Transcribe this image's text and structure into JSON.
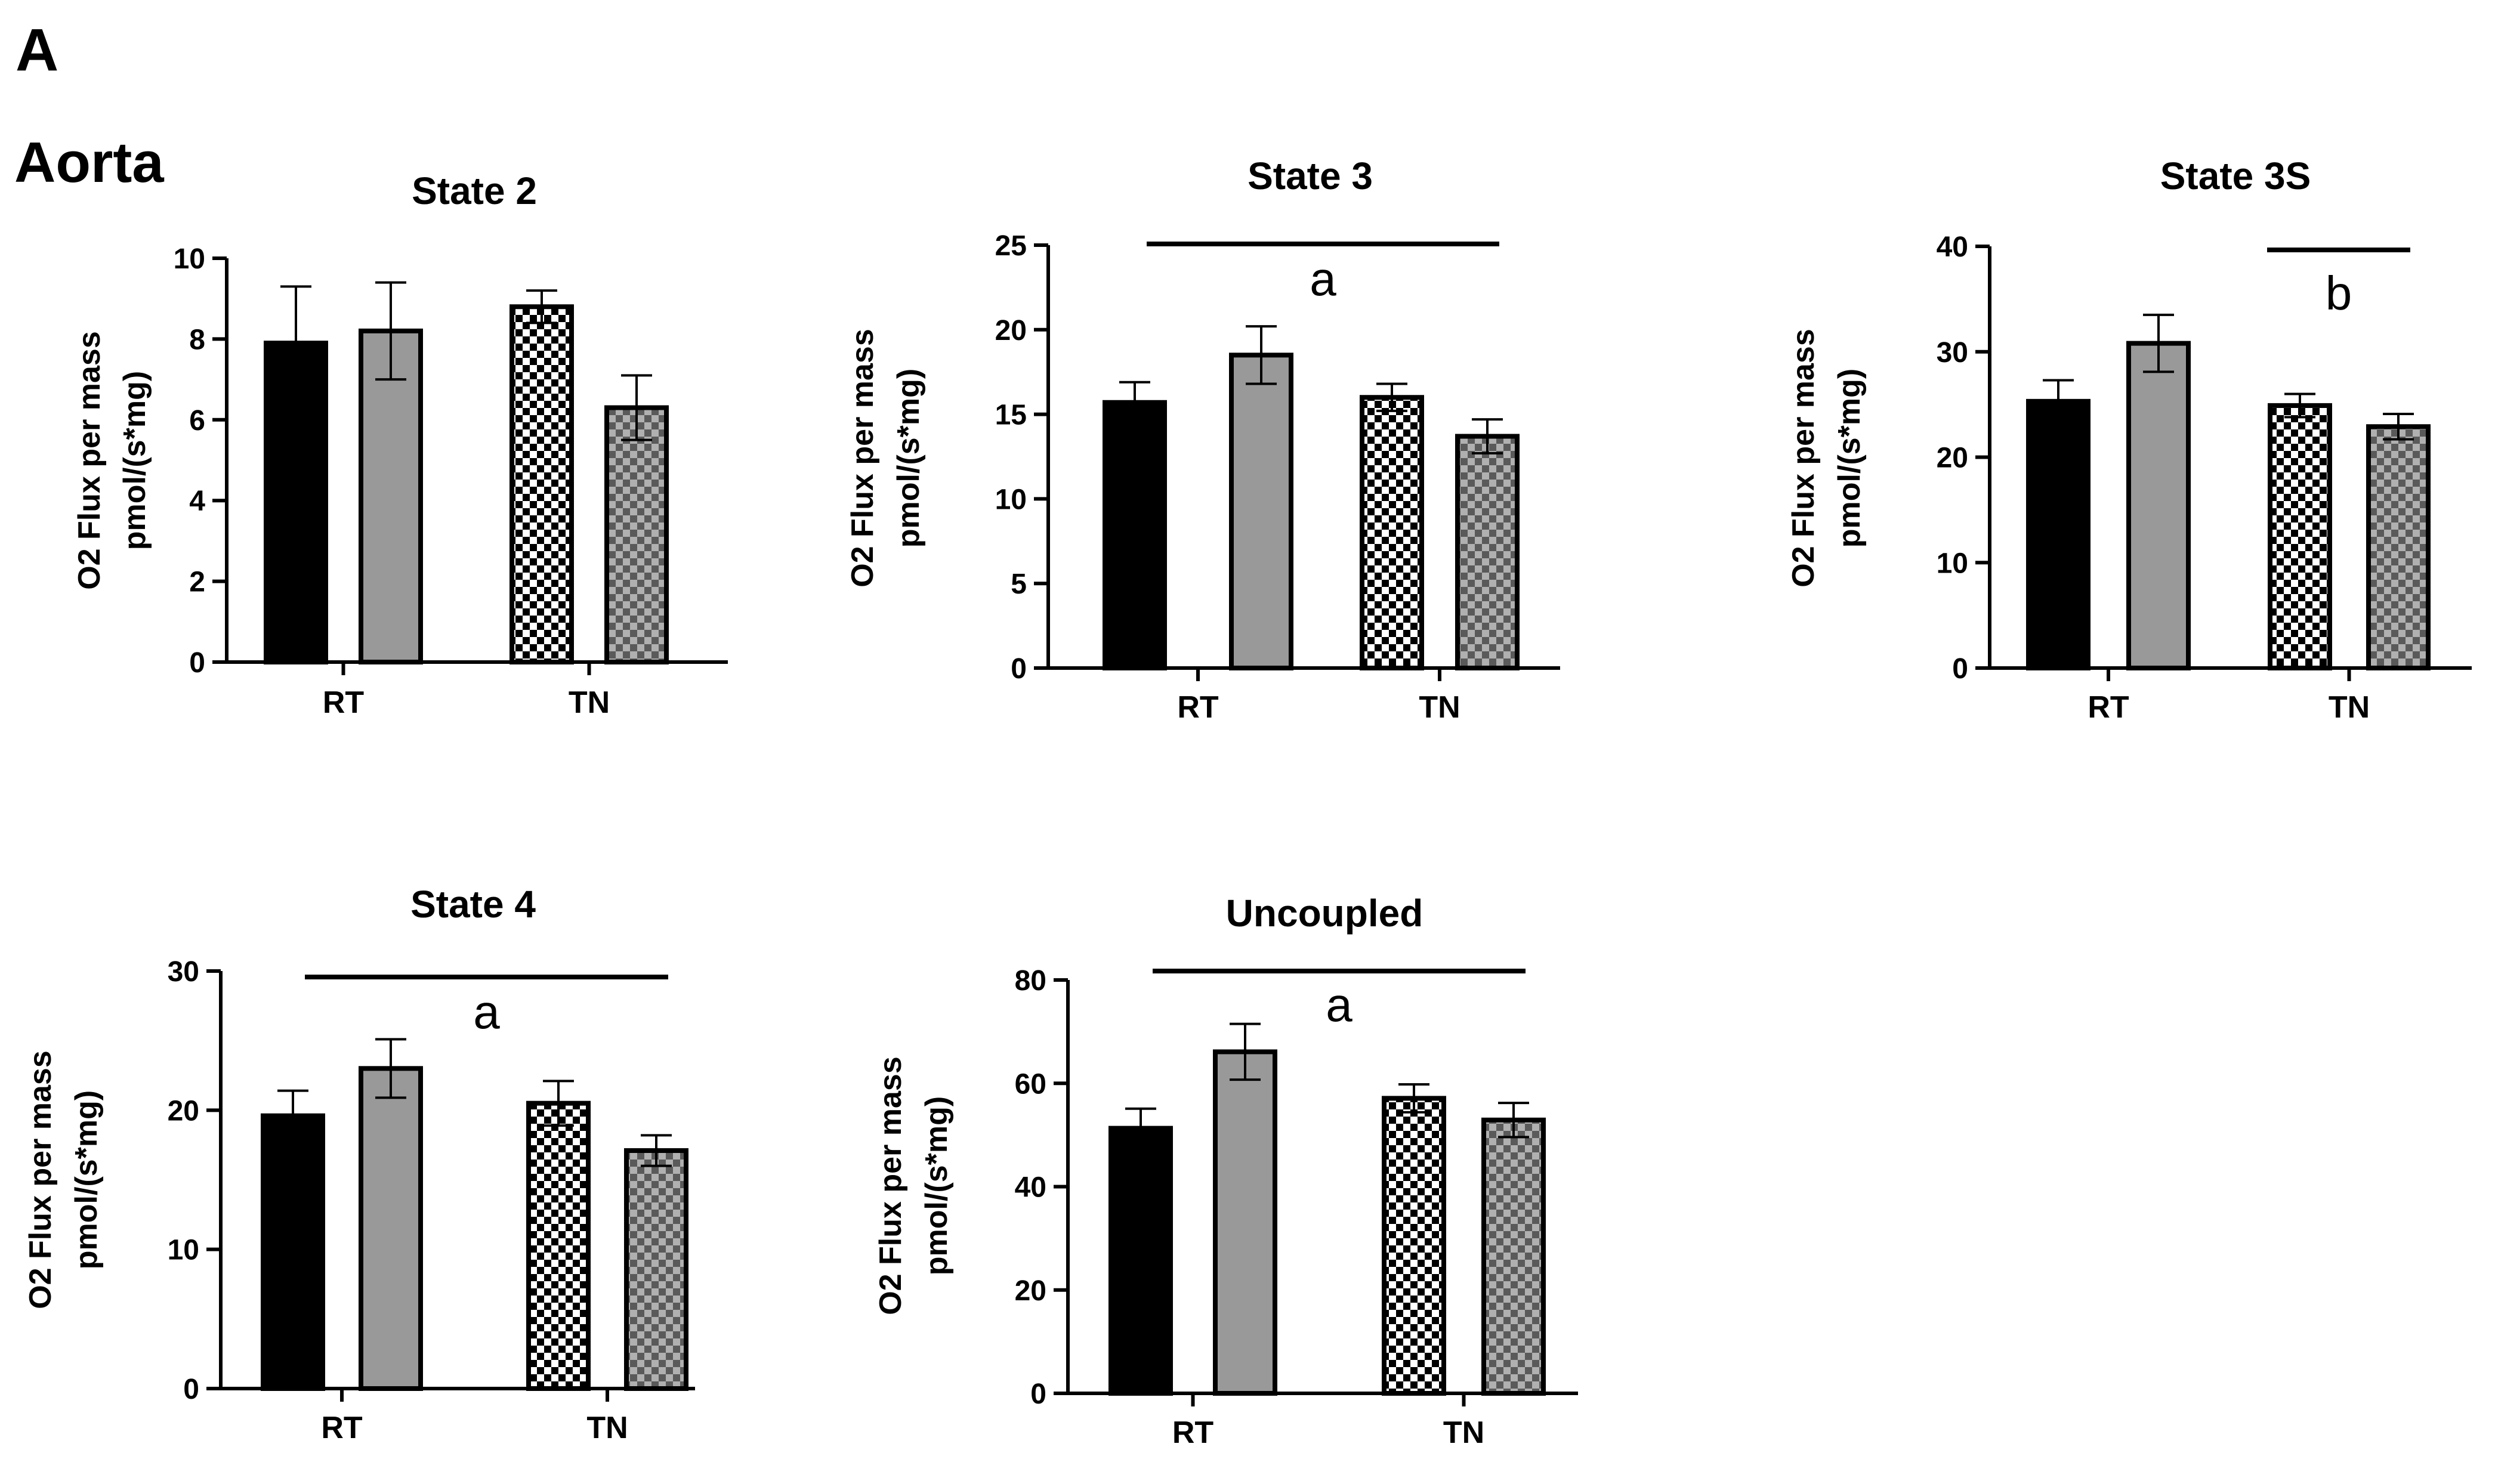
{
  "figure": {
    "panel_label": "A",
    "tissue_label": "Aorta",
    "colors": {
      "black": "#000000",
      "gray": "#999999",
      "check_dark": "#000000",
      "check_light": "#ffffff",
      "check_gray_dark": "#5a5a5a",
      "check_gray_light": "#b0b0b0"
    },
    "bar_styles": [
      "solid-black",
      "solid-gray",
      "checker-black-white",
      "checker-gray"
    ]
  },
  "chart_data": [
    {
      "type": "bar",
      "title": "State 2",
      "ylabel": [
        "O2 Flux per mass",
        "pmol/(s*mg)"
      ],
      "xlabel": "",
      "categories": [
        "RT",
        "TN"
      ],
      "ylim": [
        0,
        10
      ],
      "yticks": [
        0,
        2,
        4,
        6,
        8,
        10
      ],
      "series": [
        {
          "name": "RT bar 1",
          "category": "RT",
          "style": "solid-black",
          "value": 7.9,
          "err": 1.4
        },
        {
          "name": "RT bar 2",
          "category": "RT",
          "style": "solid-gray",
          "value": 8.2,
          "err": 1.2
        },
        {
          "name": "TN bar 1",
          "category": "TN",
          "style": "checker-black-white",
          "value": 8.8,
          "err": 0.4
        },
        {
          "name": "TN bar 2",
          "category": "TN",
          "style": "checker-gray",
          "value": 6.3,
          "err": 0.8
        }
      ],
      "significance": []
    },
    {
      "type": "bar",
      "title": "State 3",
      "ylabel": [
        "O2 Flux per mass",
        "pmol/(s*mg)"
      ],
      "xlabel": "",
      "categories": [
        "RT",
        "TN"
      ],
      "ylim": [
        0,
        25
      ],
      "yticks": [
        0,
        5,
        10,
        15,
        20,
        25
      ],
      "series": [
        {
          "name": "RT bar 1",
          "category": "RT",
          "style": "solid-black",
          "value": 15.7,
          "err": 1.2
        },
        {
          "name": "RT bar 2",
          "category": "RT",
          "style": "solid-gray",
          "value": 18.5,
          "err": 1.7
        },
        {
          "name": "TN bar 1",
          "category": "TN",
          "style": "checker-black-white",
          "value": 16.0,
          "err": 0.8
        },
        {
          "name": "TN bar 2",
          "category": "TN",
          "style": "checker-gray",
          "value": 13.7,
          "err": 1.0
        }
      ],
      "significance": [
        {
          "label": "a",
          "from_bar": 0,
          "to_bar": 3
        }
      ]
    },
    {
      "type": "bar",
      "title": "State 3S",
      "ylabel": [
        "O2 Flux per mass",
        "pmol/(s*mg)"
      ],
      "xlabel": "",
      "categories": [
        "RT",
        "TN"
      ],
      "ylim": [
        0,
        40
      ],
      "yticks": [
        0,
        10,
        20,
        30,
        40
      ],
      "series": [
        {
          "name": "RT bar 1",
          "category": "RT",
          "style": "solid-black",
          "value": 25.3,
          "err": 2.0
        },
        {
          "name": "RT bar 2",
          "category": "RT",
          "style": "solid-gray",
          "value": 30.8,
          "err": 2.7
        },
        {
          "name": "TN bar 1",
          "category": "TN",
          "style": "checker-black-white",
          "value": 24.9,
          "err": 1.1
        },
        {
          "name": "TN bar 2",
          "category": "TN",
          "style": "checker-gray",
          "value": 22.9,
          "err": 1.2
        }
      ],
      "significance": [
        {
          "label": "b",
          "from_bar": 2,
          "to_bar": 3
        }
      ]
    },
    {
      "type": "bar",
      "title": "State 4",
      "ylabel": [
        "O2 Flux per mass",
        "pmol/(s*mg)"
      ],
      "xlabel": "",
      "categories": [
        "RT",
        "TN"
      ],
      "ylim": [
        0,
        30
      ],
      "yticks": [
        0,
        10,
        20,
        30
      ],
      "series": [
        {
          "name": "RT bar 1",
          "category": "RT",
          "style": "solid-black",
          "value": 19.6,
          "err": 1.8
        },
        {
          "name": "RT bar 2",
          "category": "RT",
          "style": "solid-gray",
          "value": 23.0,
          "err": 2.1
        },
        {
          "name": "TN bar 1",
          "category": "TN",
          "style": "checker-black-white",
          "value": 20.5,
          "err": 1.6
        },
        {
          "name": "TN bar 2",
          "category": "TN",
          "style": "checker-gray",
          "value": 17.1,
          "err": 1.1
        }
      ],
      "significance": [
        {
          "label": "a",
          "from_bar": 0,
          "to_bar": 3
        }
      ]
    },
    {
      "type": "bar",
      "title": "Uncoupled",
      "ylabel": [
        "O2 Flux per mass",
        "pmol/(s*mg)"
      ],
      "xlabel": "",
      "categories": [
        "RT",
        "TN"
      ],
      "ylim": [
        0,
        80
      ],
      "yticks": [
        0,
        20,
        40,
        60,
        80
      ],
      "series": [
        {
          "name": "RT bar 1",
          "category": "RT",
          "style": "solid-black",
          "value": 51.3,
          "err": 3.8
        },
        {
          "name": "RT bar 2",
          "category": "RT",
          "style": "solid-gray",
          "value": 66.1,
          "err": 5.4
        },
        {
          "name": "TN bar 1",
          "category": "TN",
          "style": "checker-black-white",
          "value": 57.1,
          "err": 2.7
        },
        {
          "name": "TN bar 2",
          "category": "TN",
          "style": "checker-gray",
          "value": 52.9,
          "err": 3.3
        }
      ],
      "significance": [
        {
          "label": "a",
          "from_bar": 0,
          "to_bar": 3
        }
      ]
    }
  ]
}
